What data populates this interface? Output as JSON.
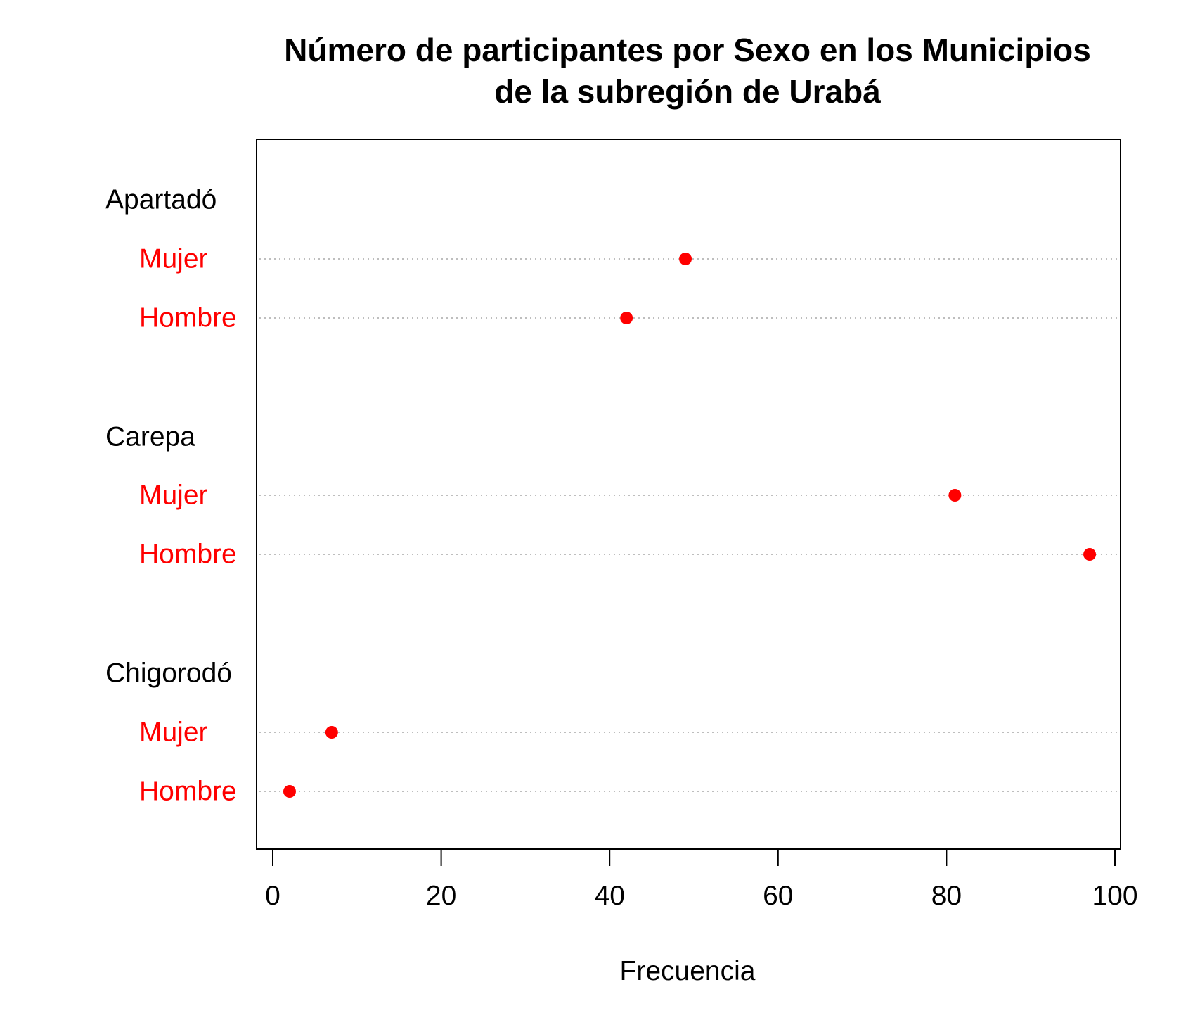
{
  "colors": {
    "point": "#ff0000",
    "category_label": "#ff0000",
    "group_label": "#000000",
    "grid": "#bebebe",
    "frame": "#000000"
  },
  "chart_data": {
    "type": "scatter",
    "subtype": "dotchart",
    "title": "Número de participantes por Sexo en los Municipios",
    "title_line2": "de la subregión de Urabá",
    "xlabel": "Frecuencia",
    "ylabel": "",
    "xlim": [
      0,
      100
    ],
    "x_ticks": [
      "0",
      "20",
      "40",
      "60",
      "80",
      "100"
    ],
    "grid": "dotted horizontal lines per category",
    "legend": "none",
    "groups": [
      {
        "name": "Apartadó",
        "rows": [
          {
            "label": "Mujer",
            "value": 49
          },
          {
            "label": "Hombre",
            "value": 42
          }
        ]
      },
      {
        "name": "Carepa",
        "rows": [
          {
            "label": "Mujer",
            "value": 81
          },
          {
            "label": "Hombre",
            "value": 97
          }
        ]
      },
      {
        "name": "Chigorodó",
        "rows": [
          {
            "label": "Mujer",
            "value": 7
          },
          {
            "label": "Hombre",
            "value": 2
          }
        ]
      }
    ]
  }
}
